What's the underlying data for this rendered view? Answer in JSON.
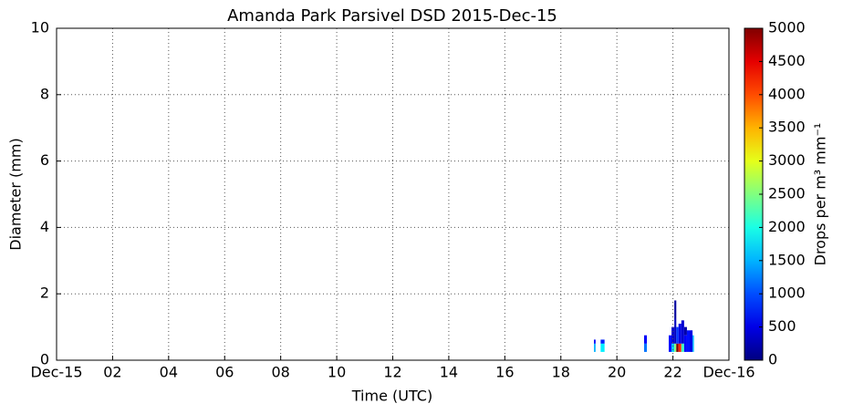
{
  "chart_data": {
    "type": "heatmap",
    "title": "Amanda Park Parsivel DSD 2015-Dec-15",
    "x_label": "Time (UTC)",
    "y_label": "Diameter (mm)",
    "colorbar_label": "Drops per m³ mm⁻¹",
    "colormap": "jet",
    "grid": true,
    "xlim": [
      0,
      24
    ],
    "xticks": [
      {
        "value": 0,
        "label": "Dec-15"
      },
      {
        "value": 2,
        "label": "02"
      },
      {
        "value": 4,
        "label": "04"
      },
      {
        "value": 6,
        "label": "06"
      },
      {
        "value": 8,
        "label": "08"
      },
      {
        "value": 10,
        "label": "10"
      },
      {
        "value": 12,
        "label": "12"
      },
      {
        "value": 14,
        "label": "14"
      },
      {
        "value": 16,
        "label": "16"
      },
      {
        "value": 18,
        "label": "18"
      },
      {
        "value": 20,
        "label": "20"
      },
      {
        "value": 22,
        "label": "22"
      },
      {
        "value": 24,
        "label": "Dec-16"
      }
    ],
    "ylim": [
      0,
      10
    ],
    "yticks": [
      0,
      2,
      4,
      6,
      8,
      10
    ],
    "clim": [
      0,
      5000
    ],
    "cticks": [
      0,
      500,
      1000,
      1500,
      2000,
      2500,
      3000,
      3500,
      4000,
      4500,
      5000
    ],
    "cells": [
      {
        "x0": 19.18,
        "x1": 19.24,
        "y0": 0.25,
        "y1": 0.5,
        "value": 1500
      },
      {
        "x0": 19.18,
        "x1": 19.24,
        "y0": 0.5,
        "y1": 0.62,
        "value": 600
      },
      {
        "x0": 19.42,
        "x1": 19.56,
        "y0": 0.25,
        "y1": 0.5,
        "value": 1800
      },
      {
        "x0": 19.42,
        "x1": 19.56,
        "y0": 0.5,
        "y1": 0.62,
        "value": 800
      },
      {
        "x0": 20.97,
        "x1": 21.07,
        "y0": 0.25,
        "y1": 0.5,
        "value": 1200
      },
      {
        "x0": 20.97,
        "x1": 21.07,
        "y0": 0.5,
        "y1": 0.75,
        "value": 600
      },
      {
        "x0": 21.85,
        "x1": 21.95,
        "y0": 0.25,
        "y1": 0.75,
        "value": 700
      },
      {
        "x0": 21.95,
        "x1": 22.05,
        "y0": 0.25,
        "y1": 0.5,
        "value": 1600
      },
      {
        "x0": 21.95,
        "x1": 22.05,
        "y0": 0.5,
        "y1": 1.0,
        "value": 400
      },
      {
        "x0": 22.05,
        "x1": 22.12,
        "y0": 0.25,
        "y1": 0.5,
        "value": 2500
      },
      {
        "x0": 22.05,
        "x1": 22.12,
        "y0": 0.5,
        "y1": 1.25,
        "value": 300
      },
      {
        "x0": 22.05,
        "x1": 22.12,
        "y0": 1.25,
        "y1": 1.8,
        "value": 150
      },
      {
        "x0": 22.12,
        "x1": 22.2,
        "y0": 0.25,
        "y1": 0.5,
        "value": 5000
      },
      {
        "x0": 22.12,
        "x1": 22.2,
        "y0": 0.5,
        "y1": 1.0,
        "value": 900
      },
      {
        "x0": 22.2,
        "x1": 22.3,
        "y0": 0.25,
        "y1": 0.5,
        "value": 4200
      },
      {
        "x0": 22.2,
        "x1": 22.3,
        "y0": 0.5,
        "y1": 1.1,
        "value": 500
      },
      {
        "x0": 22.3,
        "x1": 22.4,
        "y0": 0.25,
        "y1": 0.5,
        "value": 2200
      },
      {
        "x0": 22.3,
        "x1": 22.4,
        "y0": 0.5,
        "y1": 1.2,
        "value": 400
      },
      {
        "x0": 22.4,
        "x1": 22.5,
        "y0": 0.25,
        "y1": 0.75,
        "value": 600
      },
      {
        "x0": 22.4,
        "x1": 22.5,
        "y0": 0.75,
        "y1": 1.0,
        "value": 200
      },
      {
        "x0": 22.5,
        "x1": 22.6,
        "y0": 0.25,
        "y1": 0.9,
        "value": 700
      },
      {
        "x0": 22.6,
        "x1": 22.7,
        "y0": 0.25,
        "y1": 0.9,
        "value": 500
      },
      {
        "x0": 22.7,
        "x1": 22.75,
        "y0": 0.25,
        "y1": 0.75,
        "value": 1500
      }
    ]
  }
}
